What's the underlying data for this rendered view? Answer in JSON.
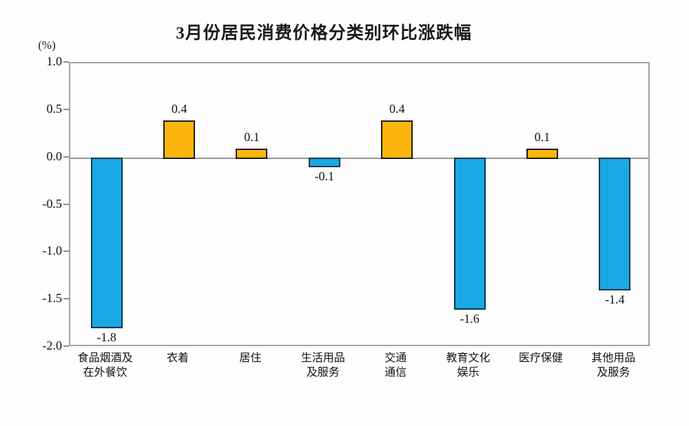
{
  "title": "3月份居民消费价格分类别环比涨跌幅",
  "chart_data": {
    "type": "bar",
    "title": "3月份居民消费价格分类别环比涨跌幅",
    "ylabel": "(%)",
    "categories": [
      "食品烟酒及\n在外餐饮",
      "衣着",
      "居住",
      "生活用品\n及服务",
      "交通\n通信",
      "教育文化\n娱乐",
      "医疗保健",
      "其他用品\n及服务"
    ],
    "values": [
      -1.8,
      0.4,
      0.1,
      -0.1,
      0.4,
      -1.6,
      0.1,
      -1.4
    ],
    "value_labels": [
      "-1.8",
      "0.4",
      "0.1",
      "-0.1",
      "0.4",
      "-1.6",
      "0.1",
      "-1.4"
    ],
    "ylim": [
      -2.0,
      1.0
    ],
    "yticks": [
      "1.0",
      "0.5",
      "0.0",
      "-0.5",
      "-1.0",
      "-1.5",
      "-2.0"
    ],
    "grid": false,
    "legend": "none",
    "colors": {
      "positive_bar": "#fbb50d",
      "negative_bar": "#18a9e4",
      "bar_border": "#1b1b1b",
      "frame": "#a3a3a3",
      "zero_line": "#979797",
      "text": "#111111"
    }
  }
}
